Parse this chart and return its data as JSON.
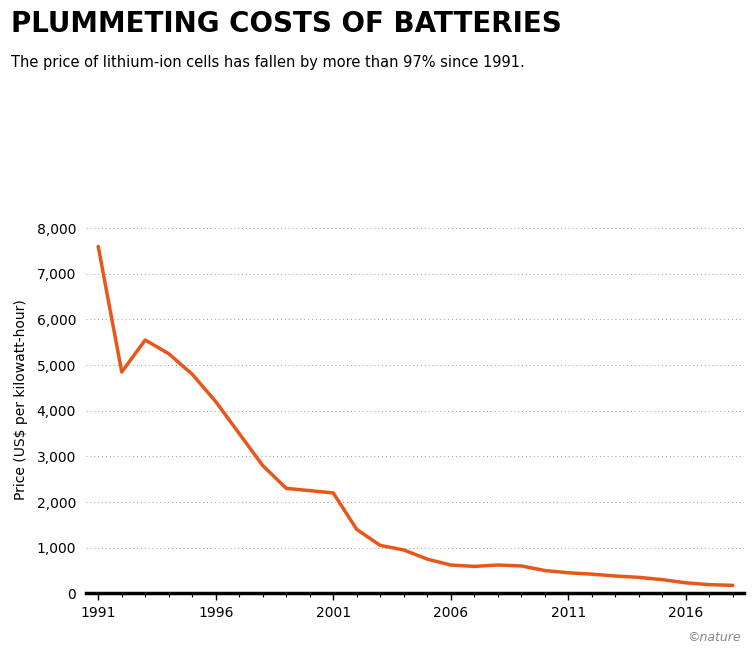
{
  "title": "PLUMMETING COSTS OF BATTERIES",
  "subtitle": "The price of lithium-ion cells has fallen by more than 97% since 1991.",
  "ylabel": "Price (US$ per kilowatt-hour)",
  "line_color": "#E8561A",
  "background_color": "#ffffff",
  "line_width": 2.5,
  "years": [
    1991,
    1992,
    1993,
    1994,
    1995,
    1996,
    1997,
    1998,
    1999,
    2000,
    2001,
    2002,
    2003,
    2004,
    2005,
    2006,
    2007,
    2008,
    2009,
    2010,
    2011,
    2012,
    2013,
    2014,
    2015,
    2016,
    2017,
    2018
  ],
  "values": [
    7600,
    4850,
    5550,
    5250,
    4800,
    4200,
    3500,
    2800,
    2300,
    2250,
    2200,
    1400,
    1050,
    950,
    750,
    620,
    590,
    620,
    600,
    500,
    450,
    420,
    380,
    350,
    300,
    230,
    190,
    175
  ],
  "ylim": [
    0,
    8500
  ],
  "xlim": [
    1990.5,
    2018.5
  ],
  "yticks": [
    0,
    1000,
    2000,
    3000,
    4000,
    5000,
    6000,
    7000,
    8000
  ],
  "ytick_labels": [
    "0",
    "1,000",
    "2,000",
    "3,000",
    "4,000",
    "5,000",
    "6,000",
    "7,000",
    "8,000"
  ],
  "xticks": [
    1991,
    1996,
    2001,
    2006,
    2011,
    2016
  ],
  "xtick_labels": [
    "1991",
    "1996",
    "2001",
    "2006",
    "2011",
    "2016"
  ],
  "grid_color": "#999999",
  "nature_credit": "©nature",
  "title_fontsize": 20,
  "subtitle_fontsize": 10.5,
  "axis_label_fontsize": 10,
  "tick_fontsize": 10
}
